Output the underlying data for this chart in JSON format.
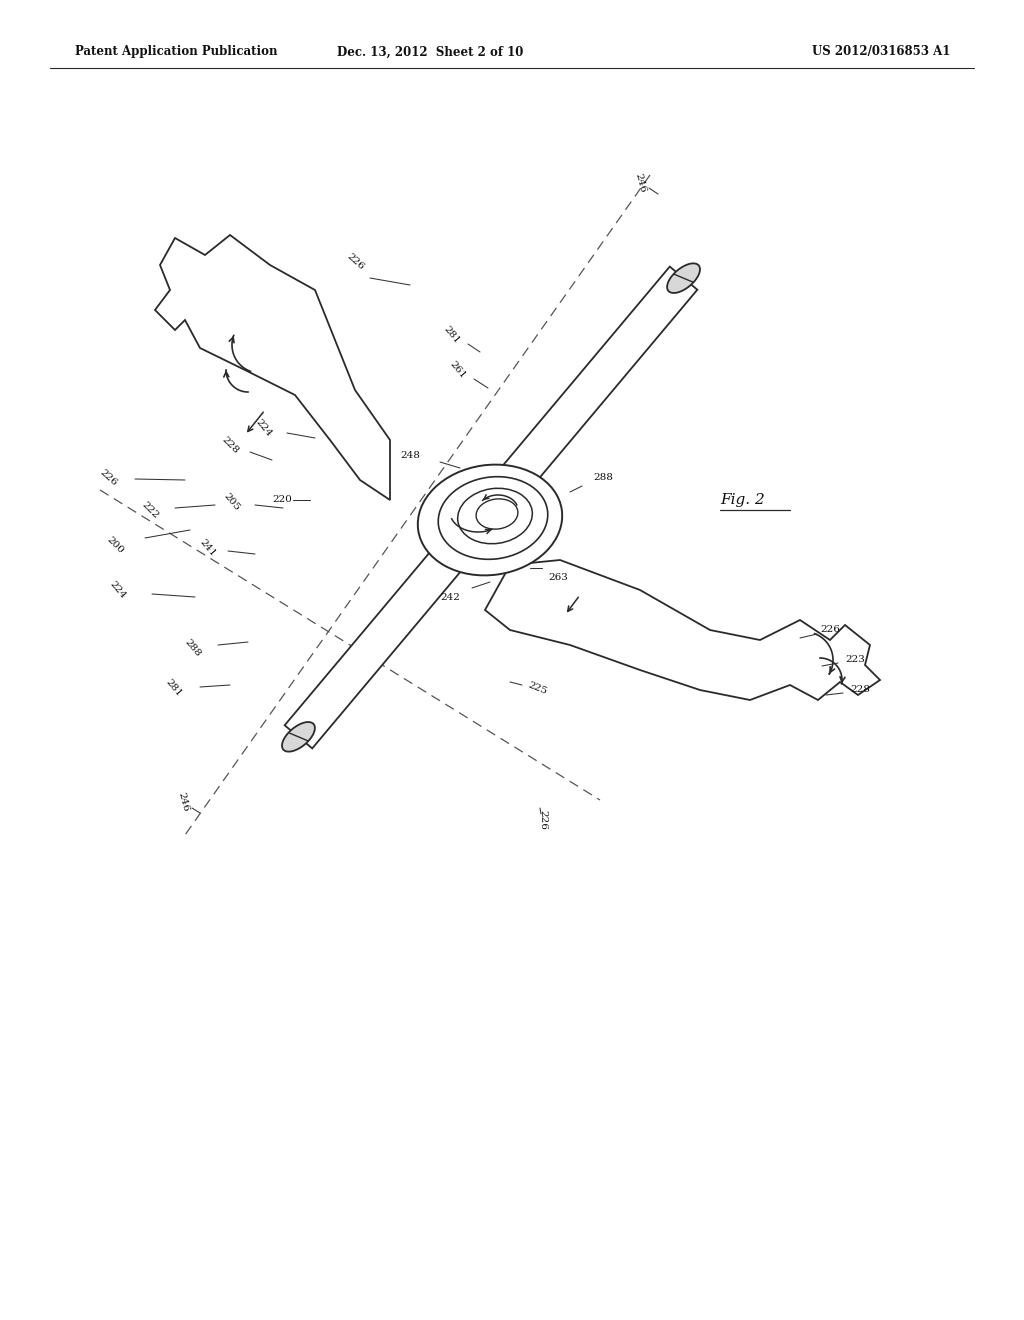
{
  "bg_color": "#ffffff",
  "line_color": "#2a2a2a",
  "header_left": "Patent Application Publication",
  "header_mid": "Dec. 13, 2012  Sheet 2 of 10",
  "header_right": "US 2012/0316853 A1",
  "fig_label": "Fig. 2"
}
